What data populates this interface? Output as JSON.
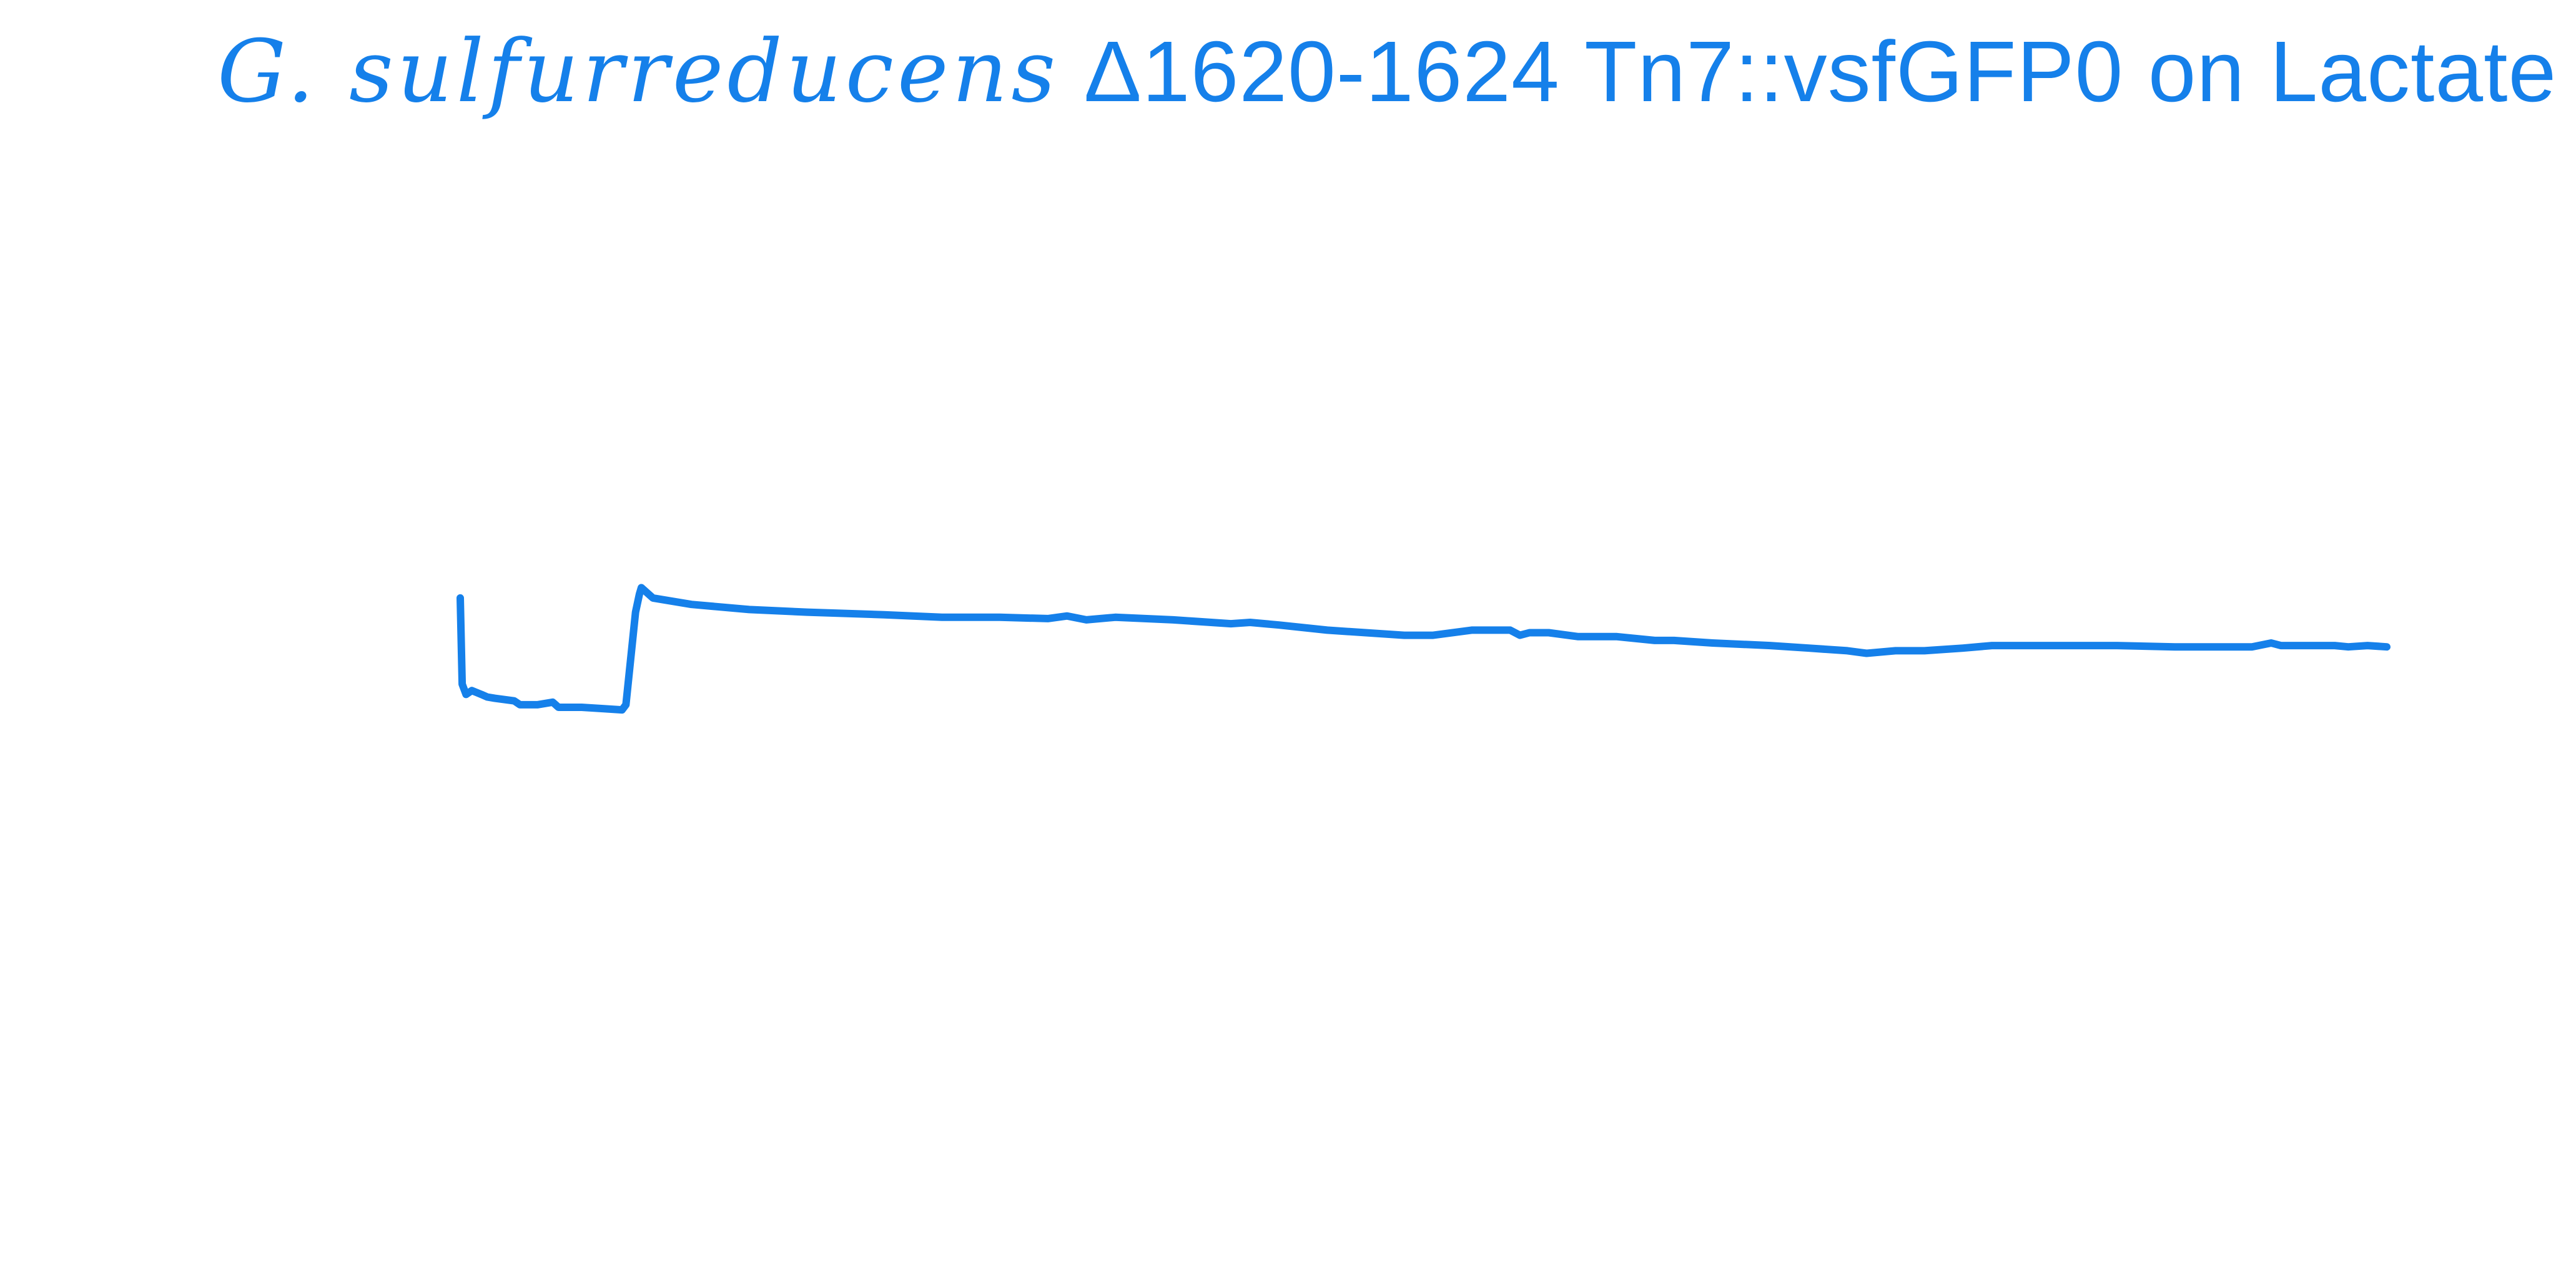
{
  "title": {
    "species": "G. sulfurreducens",
    "rest": " Δ1620-1624 Tn7::vsfGFP0 on Lactate"
  },
  "colors": {
    "series": "#1580ea",
    "title": "#1580ea",
    "background": "#ffffff"
  },
  "chart_data": {
    "type": "line",
    "title": "G. sulfurreducens Δ1620-1624 Tn7::vsfGFP0 on Lactate",
    "xlabel": "",
    "ylabel": "",
    "axes_visible": false,
    "grid": false,
    "xlim": [
      0,
      100
    ],
    "ylim": [
      0,
      100
    ],
    "series": [
      {
        "x": [
          0.0,
          0.1,
          0.3,
          0.6,
          1.1,
          1.4,
          1.8,
          2.8,
          3.1,
          4.0,
          4.8,
          5.1,
          6.3,
          7.4,
          8.4,
          8.6,
          9.1,
          9.3,
          9.4,
          10.0,
          12.0,
          15.0,
          18.0,
          22.0,
          25.0,
          28.0,
          30.5,
          31.5,
          32.5,
          34.0,
          37.0,
          40.0,
          41.0,
          42.5,
          45.0,
          49.0,
          50.5,
          52.5,
          54.5,
          55.0,
          55.5,
          56.5,
          58.0,
          60.0,
          62.0,
          63.0,
          65.0,
          68.0,
          70.0,
          72.0,
          73.0,
          74.5,
          76.0,
          78.0,
          79.5,
          81.0,
          83.0,
          86.0,
          89.0,
          93.0,
          94.0,
          94.5,
          95.5,
          96.5,
          97.3,
          98.0,
          99.0,
          100.0
        ],
        "y": [
          53.5,
          46.8,
          46.0,
          46.3,
          46.0,
          45.8,
          45.7,
          45.5,
          45.2,
          45.2,
          45.4,
          45.0,
          45.0,
          44.9,
          44.8,
          45.2,
          52.4,
          53.8,
          54.3,
          53.5,
          53.0,
          52.6,
          52.4,
          52.2,
          52.0,
          52.0,
          51.9,
          52.1,
          51.8,
          52.0,
          51.8,
          51.5,
          51.6,
          51.4,
          51.0,
          50.6,
          50.6,
          51.0,
          51.0,
          50.6,
          50.8,
          50.8,
          50.5,
          50.5,
          50.2,
          50.2,
          50.0,
          49.8,
          49.6,
          49.4,
          49.2,
          49.4,
          49.4,
          49.6,
          49.8,
          49.8,
          49.8,
          49.8,
          49.7,
          49.7,
          50.0,
          49.8,
          49.8,
          49.8,
          49.8,
          49.7,
          49.8,
          49.7
        ]
      }
    ]
  }
}
